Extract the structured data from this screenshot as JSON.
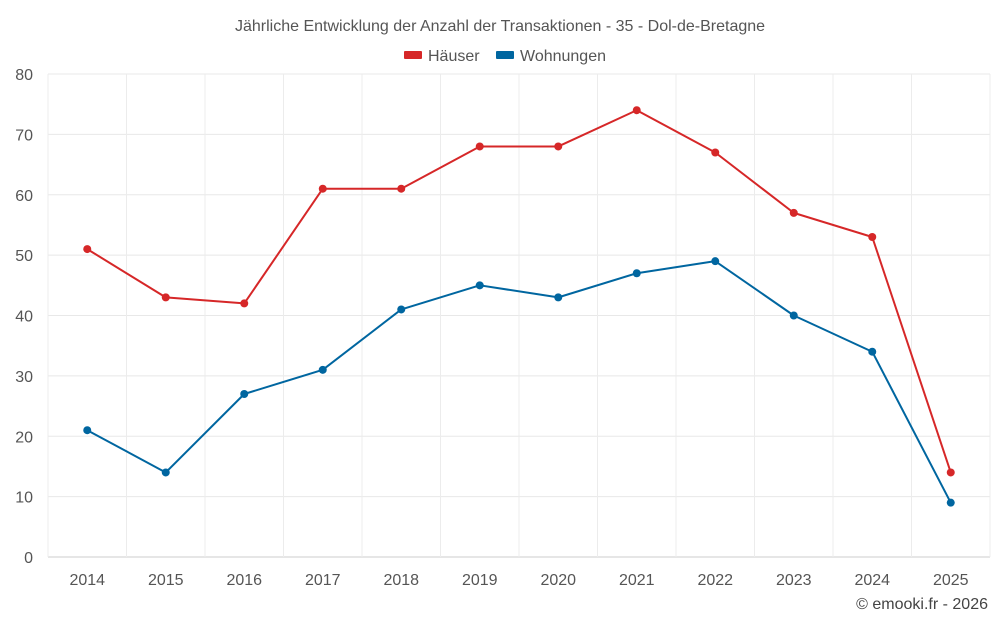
{
  "chart_data": {
    "type": "line",
    "title": "Jährliche Entwicklung der Anzahl der Transaktionen - 35 - Dol-de-Bretagne",
    "xlabel": "",
    "ylabel": "",
    "categories": [
      "2014",
      "2015",
      "2016",
      "2017",
      "2018",
      "2019",
      "2020",
      "2021",
      "2022",
      "2023",
      "2024",
      "2025"
    ],
    "ylim": [
      0,
      80
    ],
    "yticks": [
      0,
      10,
      20,
      30,
      40,
      50,
      60,
      70,
      80
    ],
    "grid": true,
    "legend_position": "top-center",
    "series": [
      {
        "name": "Häuser",
        "color": "#d62728",
        "values": [
          51,
          43,
          42,
          61,
          61,
          68,
          68,
          74,
          67,
          57,
          53,
          14
        ]
      },
      {
        "name": "Wohnungen",
        "color": "#0066a0",
        "values": [
          21,
          14,
          27,
          31,
          41,
          45,
          43,
          47,
          49,
          40,
          34,
          9
        ]
      }
    ],
    "credit": "© emooki.fr - 2026"
  }
}
